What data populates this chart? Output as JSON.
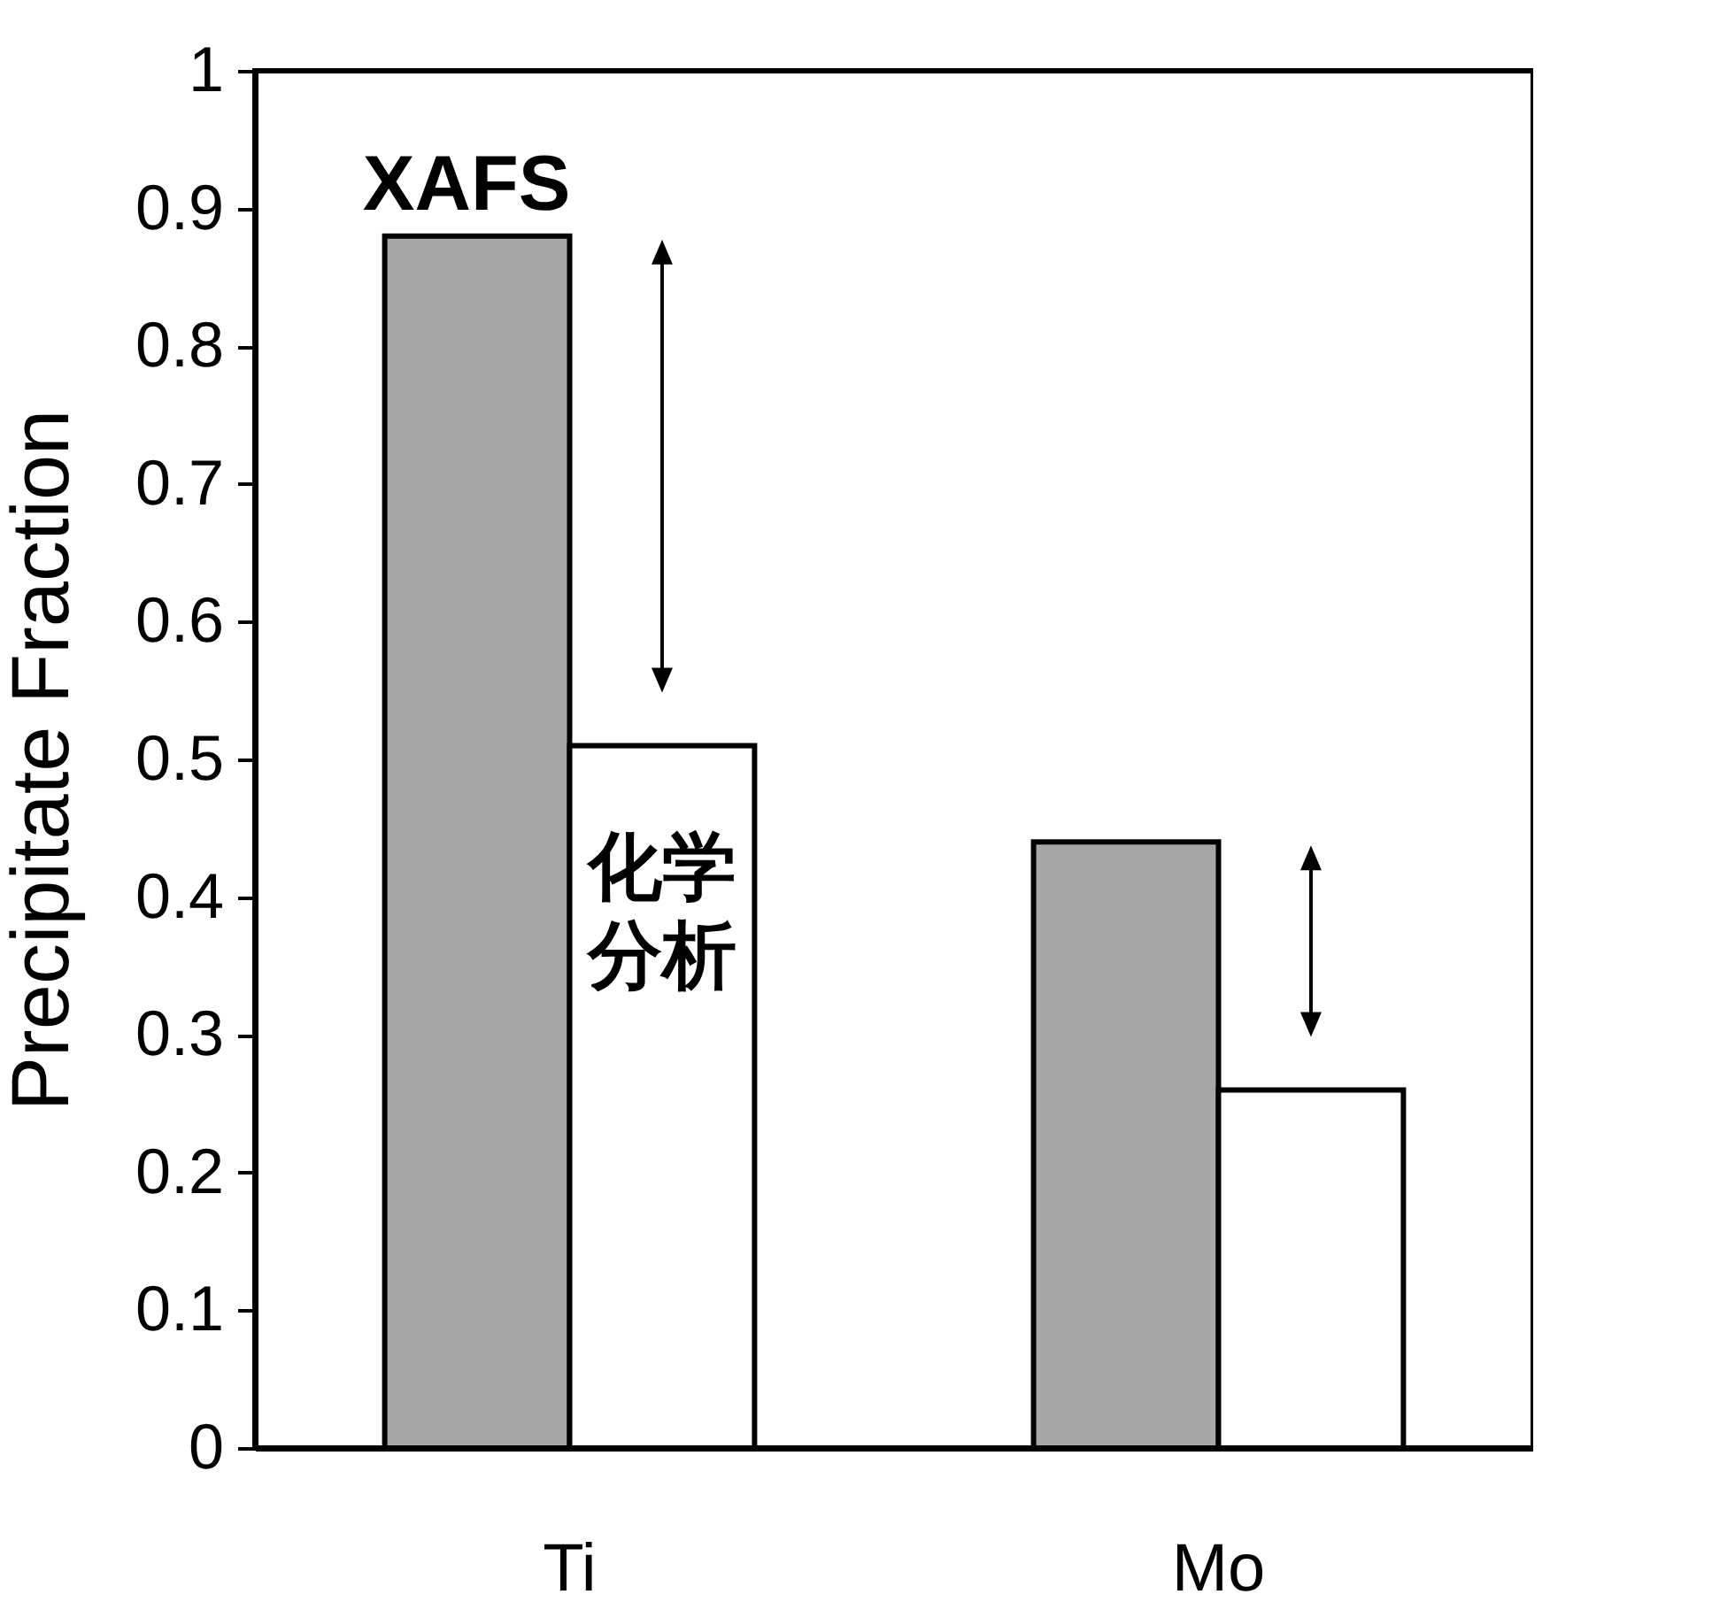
{
  "chart_data": {
    "type": "bar",
    "ylabel": "Precipitate Fraction",
    "categories": [
      "Ti",
      "Mo"
    ],
    "series": [
      {
        "name": "XAFS",
        "color": "#a6a6a6",
        "values": [
          0.88,
          0.44
        ]
      },
      {
        "name": "化学分析",
        "color": "#ffffff",
        "values": [
          0.51,
          0.26
        ]
      }
    ],
    "ylim": [
      0,
      1
    ],
    "yticks": [
      0,
      0.1,
      0.2,
      0.3,
      0.4,
      0.5,
      0.6,
      0.7,
      0.8,
      0.9,
      1
    ],
    "grid": false,
    "legend": false
  }
}
